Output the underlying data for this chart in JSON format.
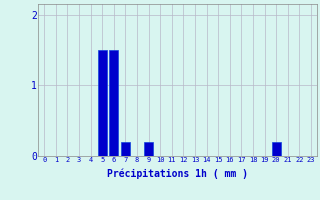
{
  "hours": [
    0,
    1,
    2,
    3,
    4,
    5,
    6,
    7,
    8,
    9,
    10,
    11,
    12,
    13,
    14,
    15,
    16,
    17,
    18,
    19,
    20,
    21,
    22,
    23
  ],
  "values": [
    0,
    0,
    0,
    0,
    0,
    1.5,
    1.5,
    0.2,
    0,
    0.2,
    0,
    0,
    0,
    0,
    0,
    0,
    0,
    0,
    0,
    0,
    0.2,
    0,
    0,
    0
  ],
  "bar_color": "#0000cc",
  "bar_edge_color": "#1144dd",
  "background_color": "#d8f5f0",
  "grid_color": "#b8b8c8",
  "xlabel": "Précipitations 1h ( mm )",
  "xlabel_color": "#0000cc",
  "tick_color": "#0000cc",
  "ylim": [
    0,
    2.15
  ],
  "yticks": [
    0,
    1,
    2
  ],
  "xlim": [
    -0.5,
    23.5
  ],
  "figwidth": 3.2,
  "figheight": 2.0,
  "dpi": 100
}
